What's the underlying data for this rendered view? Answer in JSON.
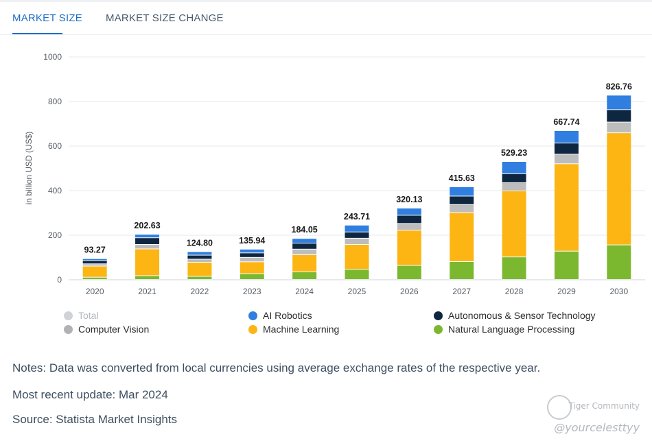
{
  "tabs": [
    {
      "label": "MARKET SIZE",
      "active": true
    },
    {
      "label": "MARKET SIZE CHANGE",
      "active": false
    }
  ],
  "chart_data": {
    "type": "bar",
    "stacked": true,
    "ylabel": "in billion USD (US$)",
    "ylim": [
      0,
      1000
    ],
    "yticks": [
      0,
      200,
      400,
      600,
      800,
      1000
    ],
    "categories": [
      "2020",
      "2021",
      "2022",
      "2023",
      "2024",
      "2025",
      "2026",
      "2027",
      "2028",
      "2029",
      "2030"
    ],
    "totals": [
      93.27,
      202.63,
      124.8,
      135.94,
      184.05,
      243.71,
      320.13,
      415.63,
      529.23,
      667.74,
      826.76
    ],
    "total_labels": [
      "93.27",
      "202.63",
      "124.80",
      "135.94",
      "184.05",
      "243.71",
      "320.13",
      "415.63",
      "529.23",
      "667.74",
      "826.76"
    ],
    "series": [
      {
        "name": "Natural Language Processing",
        "color": "#7cb82f",
        "values": [
          10,
          17,
          14,
          26,
          34,
          46,
          63,
          80,
          101,
          127,
          155
        ]
      },
      {
        "name": "Machine Learning",
        "color": "#fdb514",
        "values": [
          50,
          120,
          63,
          53,
          77,
          111,
          158,
          220,
          297,
          392,
          503
        ]
      },
      {
        "name": "Computer Vision",
        "color": "#bdbdbd",
        "values": [
          10,
          20,
          14,
          20,
          25,
          28,
          30,
          36,
          36,
          43,
          48
        ]
      },
      {
        "name": "Autonomous & Sensor Technology",
        "color": "#0f2640",
        "values": [
          15,
          30,
          18,
          20,
          27,
          28,
          37,
          38,
          40,
          50,
          56
        ]
      },
      {
        "name": "AI Robotics",
        "color": "#2f7ee0",
        "values": [
          8.27,
          15.63,
          15.8,
          16.94,
          21.05,
          30.71,
          32.13,
          41.63,
          55.23,
          55.74,
          64.76
        ]
      }
    ],
    "legend": [
      {
        "name": "Total",
        "color": "#d0d2d5",
        "dimmed": true
      },
      {
        "name": "AI Robotics",
        "color": "#2f7ee0"
      },
      {
        "name": "Autonomous & Sensor Technology",
        "color": "#0f2640"
      },
      {
        "name": "Computer Vision",
        "color": "#b0b2b5"
      },
      {
        "name": "Machine Learning",
        "color": "#fdb514"
      },
      {
        "name": "Natural Language Processing",
        "color": "#7cb82f"
      }
    ]
  },
  "notes": {
    "notes_text": "Notes: Data was converted from local currencies using average exchange rates of the respective year.",
    "update_text": "Most recent update: Mar 2024",
    "source_text": "Source: Statista Market Insights"
  },
  "watermark": {
    "brand": "Tiger Community",
    "handle": "@yourcelesttyy"
  }
}
